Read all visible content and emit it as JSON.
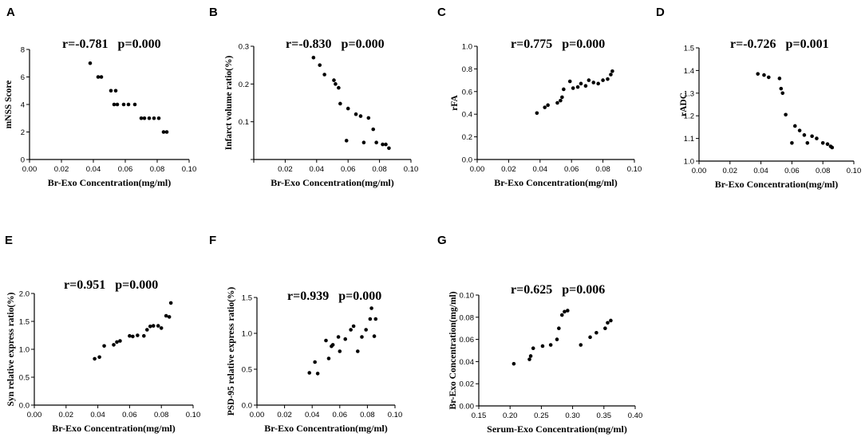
{
  "chart_data": [
    {
      "panel": "A",
      "type": "scatter",
      "stat": "r=-0.781   p=0.000",
      "xlabel": "Br-Exo Concentration(mg/ml)",
      "ylabel": "mNSS Score",
      "xlim": [
        0,
        0.1
      ],
      "ylim": [
        0,
        8
      ],
      "xticks": [
        "0.00",
        "0.02",
        "0.04",
        "0.06",
        "0.08",
        "0.10"
      ],
      "yticks": [
        "0",
        "2",
        "4",
        "6",
        "8"
      ],
      "x": [
        0.038,
        0.043,
        0.045,
        0.051,
        0.054,
        0.053,
        0.055,
        0.059,
        0.062,
        0.066,
        0.07,
        0.072,
        0.075,
        0.078,
        0.081,
        0.084,
        0.086
      ],
      "y": [
        7,
        6,
        6,
        5,
        5,
        4,
        4,
        4,
        4,
        4,
        3,
        3,
        3,
        3,
        3,
        2,
        2
      ]
    },
    {
      "panel": "B",
      "type": "scatter",
      "stat": "r=-0.830   p=0.000",
      "xlabel": "Br-Exo Concentration(mg/ml)",
      "ylabel": "Infarct volume ratio(%)",
      "xlim": [
        0,
        0.1
      ],
      "ylim": [
        0,
        0.3
      ],
      "xticks": [
        "",
        "0.02",
        "0.04",
        "0.06",
        "0.08",
        "0.10"
      ],
      "yticks": [
        "",
        "0.1",
        "0.2",
        "0.3"
      ],
      "x": [
        0.038,
        0.042,
        0.045,
        0.051,
        0.052,
        0.054,
        0.055,
        0.059,
        0.06,
        0.065,
        0.068,
        0.07,
        0.073,
        0.076,
        0.078,
        0.082,
        0.084,
        0.086
      ],
      "y": [
        0.27,
        0.25,
        0.225,
        0.21,
        0.2,
        0.19,
        0.148,
        0.05,
        0.135,
        0.12,
        0.115,
        0.045,
        0.11,
        0.08,
        0.045,
        0.04,
        0.04,
        0.03
      ]
    },
    {
      "panel": "C",
      "type": "scatter",
      "stat": "r=0.775   p=0.000",
      "xlabel": "Br-Exo Concentration(mg/ml)",
      "ylabel": "rFA",
      "xlim": [
        0,
        0.1
      ],
      "ylim": [
        0,
        1.0
      ],
      "xticks": [
        "0.00",
        "0.02",
        "0.04",
        "0.06",
        "0.08",
        "0.10"
      ],
      "yticks": [
        "0.0",
        "0.2",
        "0.4",
        "0.6",
        "0.8",
        "1.0"
      ],
      "x": [
        0.038,
        0.043,
        0.045,
        0.051,
        0.053,
        0.054,
        0.055,
        0.059,
        0.061,
        0.064,
        0.066,
        0.069,
        0.071,
        0.074,
        0.077,
        0.08,
        0.083,
        0.085,
        0.086
      ],
      "y": [
        0.41,
        0.46,
        0.48,
        0.5,
        0.52,
        0.55,
        0.62,
        0.69,
        0.63,
        0.64,
        0.67,
        0.65,
        0.7,
        0.68,
        0.67,
        0.7,
        0.71,
        0.75,
        0.78
      ]
    },
    {
      "panel": "D",
      "type": "scatter",
      "stat": "r=-0.726   p=0.001",
      "xlabel": "Br-Exo Concentration(mg/ml)",
      "ylabel": "rADC",
      "xlim": [
        0,
        0.1
      ],
      "ylim": [
        1.0,
        1.5
      ],
      "xticks": [
        "0.00",
        "0.02",
        "0.04",
        "0.06",
        "0.08",
        "0.10"
      ],
      "yticks": [
        "1.0",
        "1.1",
        "1.2",
        "1.3",
        "1.4",
        "1.5"
      ],
      "x": [
        0.038,
        0.042,
        0.045,
        0.052,
        0.053,
        0.054,
        0.056,
        0.06,
        0.062,
        0.065,
        0.068,
        0.07,
        0.073,
        0.076,
        0.08,
        0.083,
        0.085,
        0.086
      ],
      "y": [
        1.385,
        1.38,
        1.37,
        1.365,
        1.32,
        1.3,
        1.205,
        1.08,
        1.155,
        1.135,
        1.115,
        1.08,
        1.11,
        1.1,
        1.08,
        1.075,
        1.065,
        1.06
      ]
    },
    {
      "panel": "E",
      "type": "scatter",
      "stat": "r=0.951   p=0.000",
      "xlabel": "Br-Exo Concentration(mg/ml)",
      "ylabel": "Syn relative express ratio(%)",
      "xlim": [
        0,
        0.1
      ],
      "ylim": [
        0,
        2.0
      ],
      "xticks": [
        "0.00",
        "0.02",
        "0.04",
        "0.06",
        "0.08",
        "0.10"
      ],
      "yticks": [
        "0.0",
        "0.5",
        "1.0",
        "1.5",
        "2.0"
      ],
      "x": [
        0.038,
        0.041,
        0.044,
        0.05,
        0.052,
        0.054,
        0.06,
        0.062,
        0.065,
        0.069,
        0.071,
        0.073,
        0.075,
        0.078,
        0.08,
        0.083,
        0.085,
        0.086
      ],
      "y": [
        0.83,
        0.86,
        1.06,
        1.08,
        1.13,
        1.15,
        1.24,
        1.23,
        1.25,
        1.24,
        1.35,
        1.41,
        1.42,
        1.42,
        1.38,
        1.6,
        1.58,
        1.83
      ]
    },
    {
      "panel": "F",
      "type": "scatter",
      "stat": "r=0.939   p=0.000",
      "xlabel": "Br-Exo Concentration(mg/ml)",
      "ylabel": "PSD-95 relative express ratio(%)",
      "xlim": [
        0,
        0.1
      ],
      "ylim": [
        0,
        1.5
      ],
      "xticks": [
        "0.00",
        "0.02",
        "0.04",
        "0.06",
        "0.08",
        "0.10"
      ],
      "yticks": [
        "0.0",
        "0.5",
        "1.0",
        "1.5"
      ],
      "x": [
        0.038,
        0.042,
        0.044,
        0.05,
        0.052,
        0.054,
        0.055,
        0.059,
        0.06,
        0.064,
        0.068,
        0.07,
        0.073,
        0.076,
        0.079,
        0.082,
        0.083,
        0.085,
        0.086
      ],
      "y": [
        0.45,
        0.6,
        0.44,
        0.9,
        0.65,
        0.82,
        0.84,
        0.95,
        0.75,
        0.92,
        1.05,
        1.1,
        0.75,
        0.95,
        1.05,
        1.2,
        1.35,
        0.96,
        1.2
      ]
    },
    {
      "panel": "G",
      "type": "scatter",
      "stat": "r=0.625   p=0.006",
      "xlabel": "Serum-Exo Concentration(mg/ml)",
      "ylabel": "Br-Exo Concentration(mg/ml)",
      "xlim": [
        0.15,
        0.4
      ],
      "ylim": [
        0,
        0.1
      ],
      "xticks": [
        "0.15",
        "0.20",
        "0.25",
        "0.30",
        "0.35",
        "0.40"
      ],
      "yticks": [
        "0.00",
        "0.02",
        "0.04",
        "0.06",
        "0.08",
        "0.10"
      ],
      "x": [
        0.206,
        0.231,
        0.233,
        0.237,
        0.252,
        0.265,
        0.275,
        0.278,
        0.283,
        0.287,
        0.292,
        0.313,
        0.328,
        0.338,
        0.352,
        0.356,
        0.361
      ],
      "y": [
        0.038,
        0.042,
        0.045,
        0.052,
        0.054,
        0.055,
        0.06,
        0.07,
        0.082,
        0.085,
        0.086,
        0.055,
        0.062,
        0.066,
        0.07,
        0.075,
        0.077
      ]
    }
  ]
}
